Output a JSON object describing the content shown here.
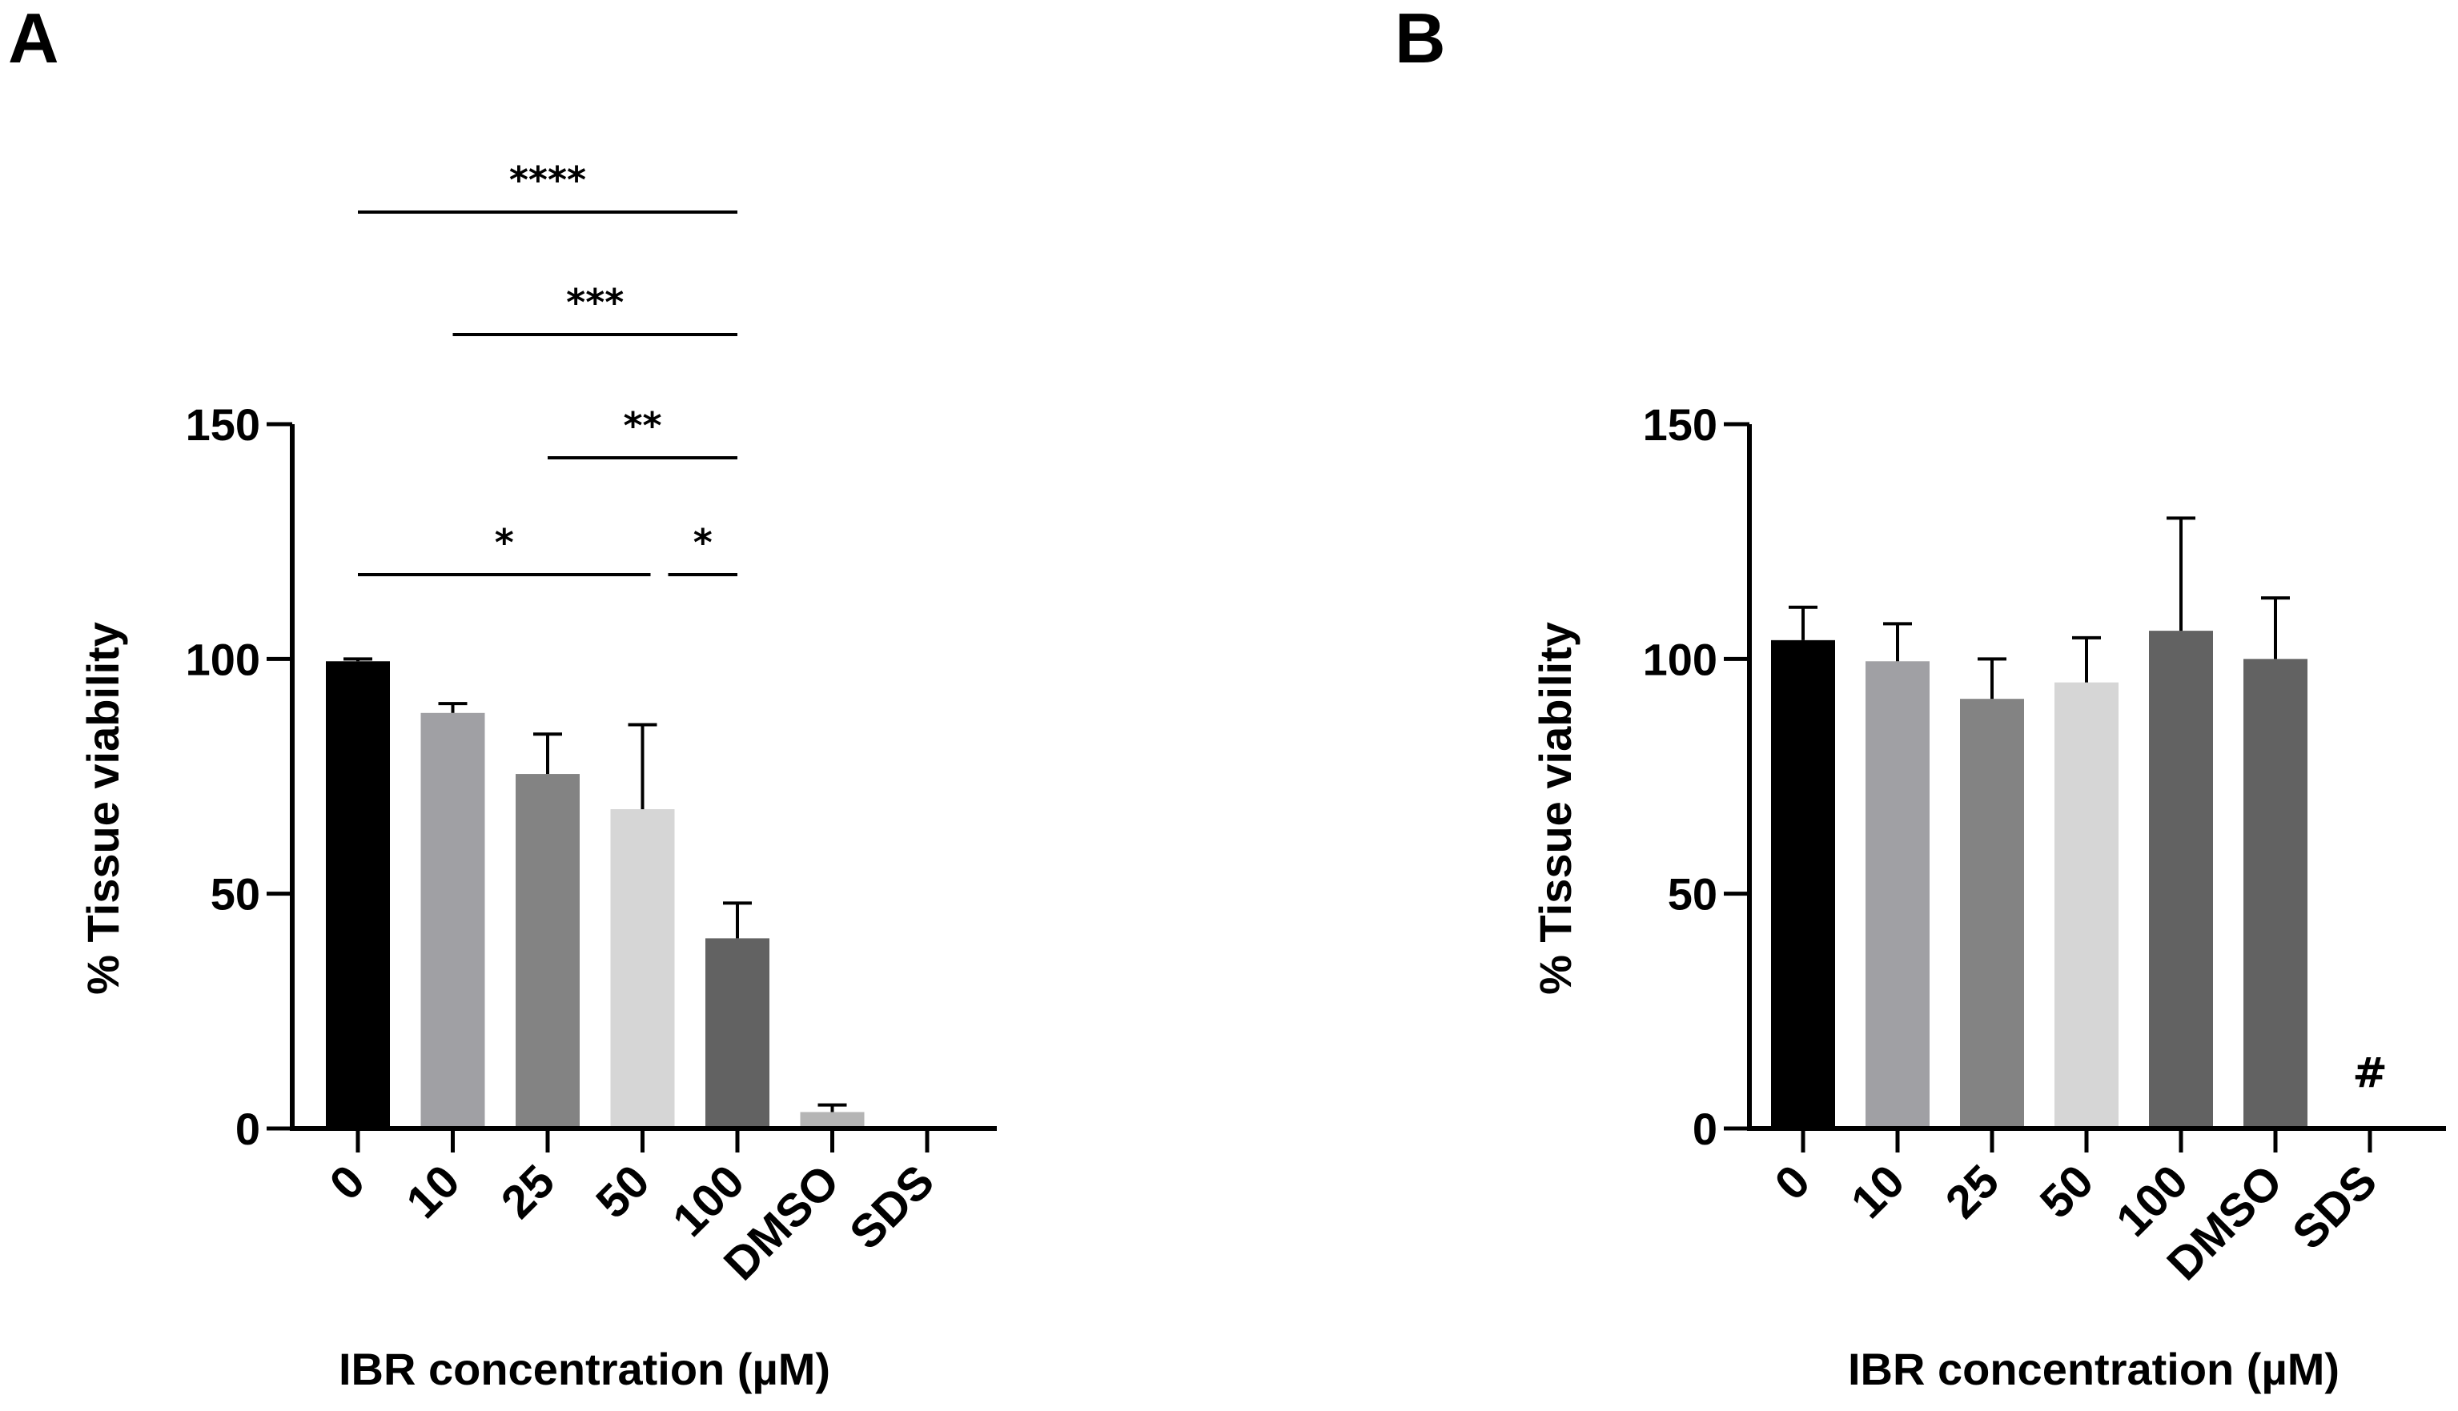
{
  "chart_data": [
    {
      "panel": "A",
      "type": "bar",
      "title": "",
      "xlabel": "IBR concentration (µM)",
      "ylabel": "% Tissue viability",
      "ylim": [
        0,
        150
      ],
      "yticks": [
        "0",
        "50",
        "100",
        "150"
      ],
      "categories": [
        "0",
        "10",
        "25",
        "50",
        "100",
        "DMSO",
        "SDS"
      ],
      "values": [
        99.5,
        88.5,
        75.5,
        68,
        40.5,
        3.5,
        0.5
      ],
      "errors": [
        0.5,
        2,
        8.5,
        18,
        7.5,
        1.5,
        0
      ],
      "colors": [
        "#000000",
        "#a0a0a4",
        "#838383",
        "#d6d6d6",
        "#626262",
        "#b5b5b5",
        "#b5b5b5"
      ],
      "significance": [
        {
          "from": "0",
          "to": "100",
          "label": "****"
        },
        {
          "from": "10",
          "to": "100",
          "label": "***"
        },
        {
          "from": "25",
          "to": "100",
          "label": "**"
        },
        {
          "from": "0",
          "to": "50",
          "label": "*"
        },
        {
          "from": "50",
          "to": "100",
          "label": "*"
        }
      ],
      "annotations": []
    },
    {
      "panel": "B",
      "type": "bar",
      "title": "",
      "xlabel": "IBR concentration (µM)",
      "ylabel": "% Tissue viability",
      "ylim": [
        0,
        150
      ],
      "yticks": [
        "0",
        "50",
        "100",
        "150"
      ],
      "categories": [
        "0",
        "10",
        "25",
        "50",
        "100",
        "DMSO",
        "SDS"
      ],
      "values": [
        104,
        99.5,
        91.5,
        95,
        106,
        100,
        0
      ],
      "errors": [
        7,
        8,
        8.5,
        9.5,
        24,
        13,
        0
      ],
      "colors": [
        "#000000",
        "#a0a0a4",
        "#838383",
        "#d6d6d6",
        "#626262",
        "#626262",
        "#626262"
      ],
      "significance": [],
      "annotations": [
        {
          "category": "SDS",
          "label": "#"
        }
      ]
    }
  ]
}
